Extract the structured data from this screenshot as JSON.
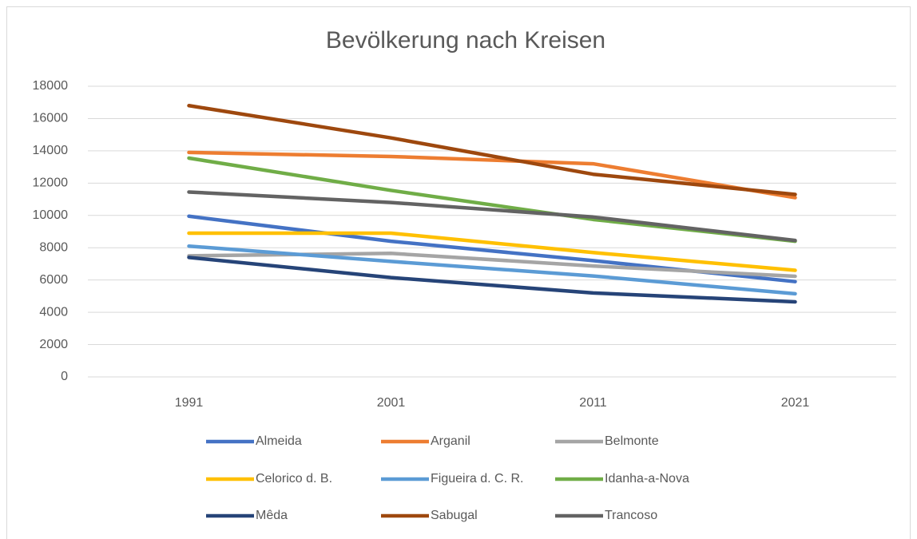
{
  "chart_data": {
    "type": "line",
    "title": "Bevölkerung nach Kreisen",
    "categories": [
      "1991",
      "2001",
      "2011",
      "2021"
    ],
    "series": [
      {
        "name": "Almeida",
        "color": "#4472c4",
        "values": [
          9950,
          8400,
          7200,
          5900
        ]
      },
      {
        "name": "Arganil",
        "color": "#ed7d31",
        "values": [
          13900,
          13650,
          13200,
          11100
        ]
      },
      {
        "name": "Belmonte",
        "color": "#a5a5a5",
        "values": [
          7500,
          7650,
          6870,
          6230
        ]
      },
      {
        "name": "Celorico d. B.",
        "color": "#ffc000",
        "values": [
          8900,
          8900,
          7700,
          6600
        ]
      },
      {
        "name": "Figueira d. C. R.",
        "color": "#5b9bd5",
        "values": [
          8100,
          7150,
          6250,
          5150
        ]
      },
      {
        "name": "Idanha-a-Nova",
        "color": "#70ad47",
        "values": [
          13550,
          11550,
          9750,
          8400
        ]
      },
      {
        "name": "Mêda",
        "color": "#264478",
        "values": [
          7400,
          6150,
          5200,
          4650
        ]
      },
      {
        "name": "Sabugal",
        "color": "#9e480e",
        "values": [
          16800,
          14800,
          12550,
          11300
        ]
      },
      {
        "name": "Trancoso",
        "color": "#636363",
        "values": [
          11450,
          10800,
          9900,
          8450
        ]
      }
    ],
    "ylim": [
      0,
      18000
    ],
    "yticks": [
      0,
      2000,
      4000,
      6000,
      8000,
      10000,
      12000,
      14000,
      16000,
      18000
    ],
    "grid": true
  }
}
